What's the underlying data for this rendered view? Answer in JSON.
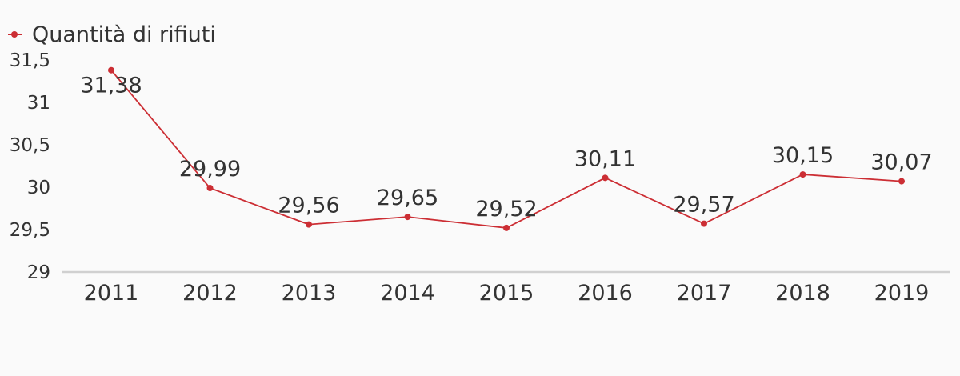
{
  "legend": {
    "label": "Quantità di rifiuti"
  },
  "colors": {
    "series": "#cc2e34",
    "axis": "#d0d0d0",
    "text": "#333333",
    "background": "#fafafa"
  },
  "chart_data": {
    "type": "line",
    "title": "",
    "xlabel": "",
    "ylabel": "",
    "categories": [
      "2011",
      "2012",
      "2013",
      "2014",
      "2015",
      "2016",
      "2017",
      "2018",
      "2019"
    ],
    "series": [
      {
        "name": "Quantità di rifiuti",
        "values": [
          31.38,
          29.99,
          29.56,
          29.65,
          29.52,
          30.11,
          29.57,
          30.15,
          30.07
        ],
        "data_labels": [
          "31,38",
          "29,99",
          "29,56",
          "29,65",
          "29,52",
          "30,11",
          "29,57",
          "30,15",
          "30,07"
        ]
      }
    ],
    "ylim": [
      29,
      31.5
    ],
    "yticks": [
      29,
      29.5,
      30,
      30.5,
      31,
      31.5
    ],
    "ytick_labels": [
      "29",
      "29,5",
      "30",
      "30,5",
      "31",
      "31,5"
    ],
    "grid": false,
    "legend_position": "top-left"
  }
}
